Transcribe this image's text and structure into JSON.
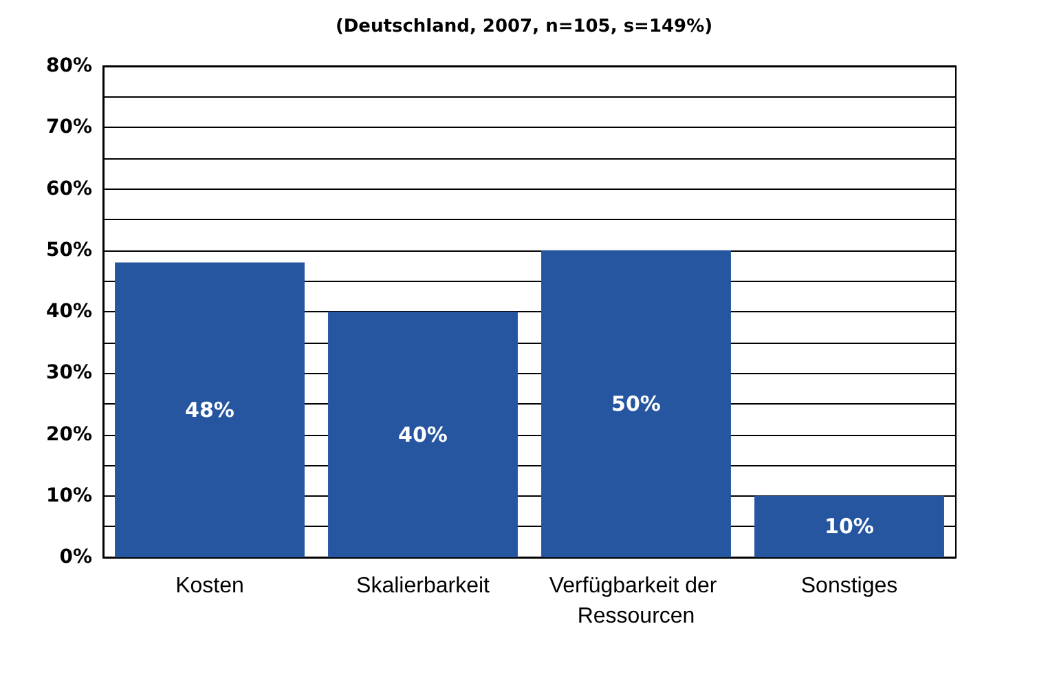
{
  "chart_data": {
    "type": "bar",
    "title": "(Deutschland, 2007, n=105, s=149%)",
    "categories": [
      "Kosten",
      "Skalierbarkeit",
      "Verfügbarkeit der Ressourcen",
      "Sonstiges"
    ],
    "values": [
      48,
      40,
      50,
      10
    ],
    "color": "#2656a0",
    "value_labels": [
      "48%",
      "40%",
      "50%",
      "10%"
    ],
    "ylim": [
      0,
      80
    ],
    "yticks": [
      {
        "value": 0,
        "label": "0%"
      },
      {
        "value": 5,
        "label": null
      },
      {
        "value": 10,
        "label": "10%"
      },
      {
        "value": 15,
        "label": null
      },
      {
        "value": 20,
        "label": "20%"
      },
      {
        "value": 25,
        "label": null
      },
      {
        "value": 30,
        "label": "30%"
      },
      {
        "value": 35,
        "label": null
      },
      {
        "value": 40,
        "label": "40%"
      },
      {
        "value": 45,
        "label": null
      },
      {
        "value": 50,
        "label": "50%"
      },
      {
        "value": 55,
        "label": null
      },
      {
        "value": 60,
        "label": "60%"
      },
      {
        "value": 65,
        "label": null
      },
      {
        "value": 70,
        "label": "70%"
      },
      {
        "value": 75,
        "label": null
      },
      {
        "value": 80,
        "label": "80%"
      }
    ],
    "grid": true
  }
}
